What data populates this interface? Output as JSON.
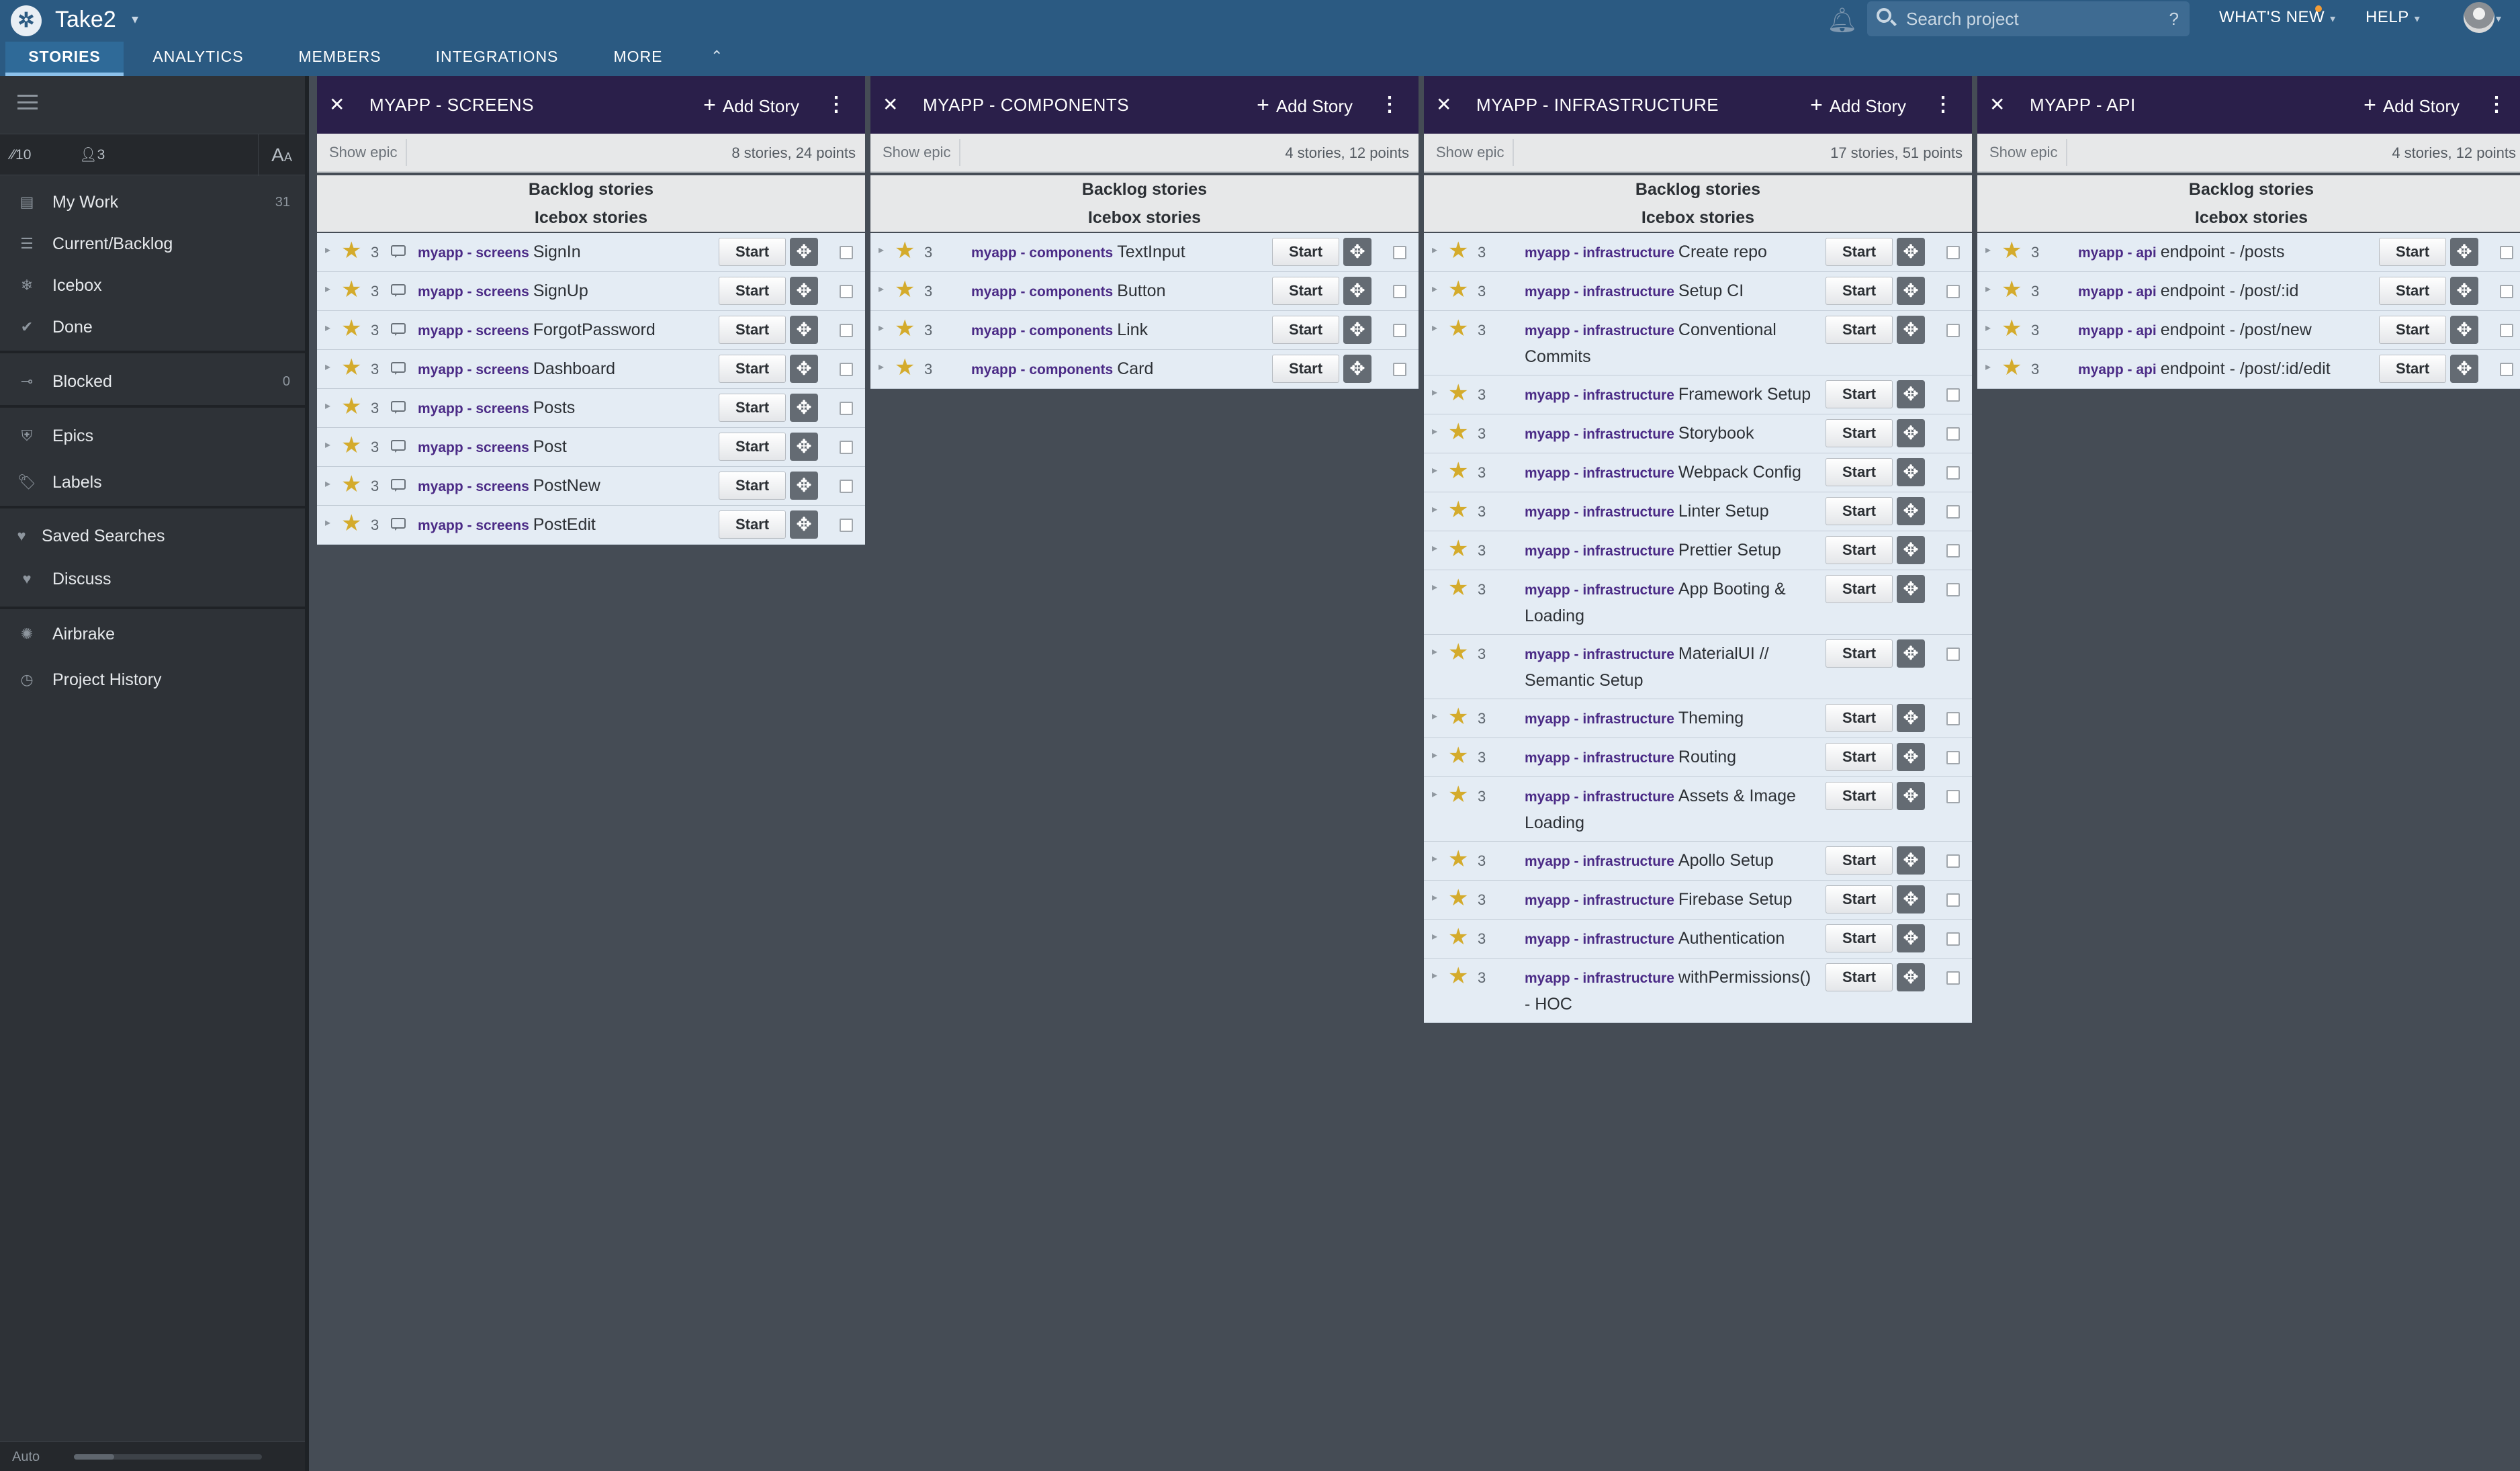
{
  "app": {
    "project_title": "Take2",
    "search_placeholder": "Search project",
    "search_help": "?",
    "whats_new": "WHAT'S NEW",
    "help": "HELP"
  },
  "tabs": [
    "STORIES",
    "ANALYTICS",
    "MEMBERS",
    "INTEGRATIONS",
    "MORE"
  ],
  "sidebar": {
    "velocity": "10",
    "members_count": "3",
    "font_toggle": "A",
    "font_toggle_small": "A",
    "items": [
      {
        "label": "My Work",
        "count": "31",
        "icon": "inbox-icon"
      },
      {
        "label": "Current/Backlog",
        "count": "",
        "icon": "list-icon"
      },
      {
        "label": "Icebox",
        "count": "",
        "icon": "snowflake-icon"
      },
      {
        "label": "Done",
        "count": "",
        "icon": "check-icon"
      },
      {
        "label": "Blocked",
        "count": "0",
        "icon": "blocked-icon"
      },
      {
        "label": "Epics",
        "count": "",
        "icon": "shield-icon"
      },
      {
        "label": "Labels",
        "count": "",
        "icon": "tag-icon"
      },
      {
        "label": "Saved Searches",
        "count": "",
        "icon": "heart-icon"
      },
      {
        "label": "Discuss",
        "count": "",
        "icon": "chat-icon"
      },
      {
        "label": "Airbrake",
        "count": "",
        "icon": "bug-icon"
      },
      {
        "label": "Project History",
        "count": "",
        "icon": "clock-icon"
      }
    ],
    "auto_label": "Auto"
  },
  "panel_labels": {
    "add_story": "Add Story",
    "show_epic": "Show epic",
    "backlog": "Backlog stories",
    "icebox": "Icebox stories",
    "start": "Start"
  },
  "panels": [
    {
      "title": "MYAPP - SCREENS",
      "summary": "8 stories, 24 points",
      "epic": "myapp - screens",
      "stories": [
        {
          "title": "SignIn",
          "points": "3"
        },
        {
          "title": "SignUp",
          "points": "3"
        },
        {
          "title": "ForgotPassword",
          "points": "3"
        },
        {
          "title": "Dashboard",
          "points": "3"
        },
        {
          "title": "Posts",
          "points": "3"
        },
        {
          "title": "Post",
          "points": "3"
        },
        {
          "title": "PostNew",
          "points": "3"
        },
        {
          "title": "PostEdit",
          "points": "3"
        }
      ]
    },
    {
      "title": "MYAPP - COMPONENTS",
      "summary": "4 stories, 12 points",
      "epic": "myapp - components",
      "stories": [
        {
          "title": "TextInput",
          "points": "3"
        },
        {
          "title": "Button",
          "points": "3"
        },
        {
          "title": "Link",
          "points": "3"
        },
        {
          "title": "Card",
          "points": "3"
        }
      ]
    },
    {
      "title": "MYAPP - INFRASTRUCTURE",
      "summary": "17 stories, 51 points",
      "epic": "myapp - infrastructure",
      "stories": [
        {
          "title": "Create repo",
          "points": "3"
        },
        {
          "title": "Setup CI",
          "points": "3"
        },
        {
          "title": "Conventional Commits",
          "points": "3"
        },
        {
          "title": "Framework Setup",
          "points": "3"
        },
        {
          "title": "Storybook",
          "points": "3"
        },
        {
          "title": "Webpack Config",
          "points": "3"
        },
        {
          "title": "Linter Setup",
          "points": "3"
        },
        {
          "title": "Prettier Setup",
          "points": "3"
        },
        {
          "title": "App Booting & Loading",
          "points": "3"
        },
        {
          "title": "MaterialUI // Semantic Setup",
          "points": "3"
        },
        {
          "title": "Theming",
          "points": "3"
        },
        {
          "title": "Routing",
          "points": "3"
        },
        {
          "title": "Assets & Image Loading",
          "points": "3"
        },
        {
          "title": "Apollo Setup",
          "points": "3"
        },
        {
          "title": "Firebase Setup",
          "points": "3"
        },
        {
          "title": "Authentication",
          "points": "3"
        },
        {
          "title": "withPermissions() - HOC",
          "points": "3"
        }
      ]
    },
    {
      "title": "MYAPP - API",
      "summary": "4 stories, 12 points",
      "epic": "myapp - api",
      "stories": [
        {
          "title": "endpoint - /posts",
          "points": "3"
        },
        {
          "title": "endpoint - /post/:id",
          "points": "3"
        },
        {
          "title": "endpoint - /post/new",
          "points": "3"
        },
        {
          "title": "endpoint - /post/:id/edit",
          "points": "3"
        }
      ]
    }
  ],
  "colors": {
    "topbar": "#2b5a82",
    "panel_header": "#2a1f4a",
    "epic_label": "#4b2b86",
    "star": "#d4ab2c",
    "story_bg": "#e4ecf4",
    "panel_body": "#454c55",
    "sidebar": "#2e3237"
  }
}
